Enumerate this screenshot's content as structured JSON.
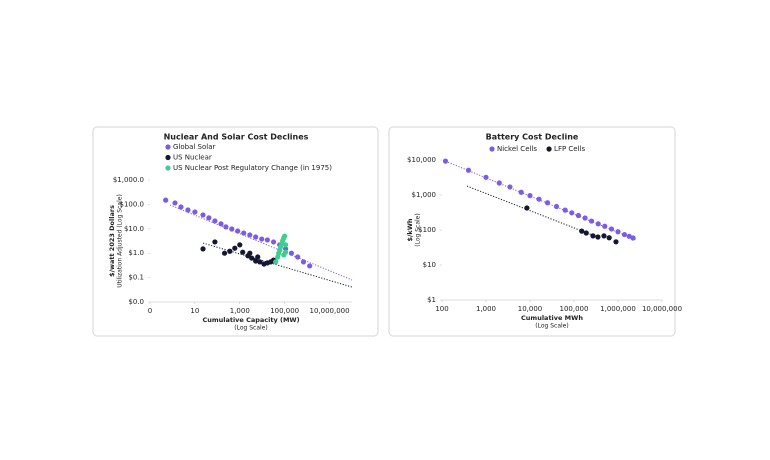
{
  "chart_data": [
    {
      "type": "scatter",
      "title": "Nuclear And Solar Cost Declines",
      "x_label": "Cumulative Capacity (MW)",
      "x_sublabel": "(Log Scale)",
      "y_label": "$/watt 2023 Dollars",
      "y_sublabel": "Utilization Adjusted (Log Scale)",
      "xscale": "log",
      "yscale": "log",
      "grid": false,
      "xlim": [
        0.1,
        100000000
      ],
      "xticks": [
        {
          "value": 0.1,
          "label": "0"
        },
        10,
        {
          "value": 1000,
          "label": "1,000"
        },
        {
          "value": 100000,
          "label": "100,000"
        },
        {
          "value": 10000000,
          "label": "10,000,000"
        }
      ],
      "ylim": [
        0.01,
        1000
      ],
      "yticks": [
        {
          "value": 0.01,
          "label": "$0.0"
        },
        {
          "value": 0.1,
          "label": "$0.1"
        },
        {
          "value": 1,
          "label": "$1.0"
        },
        {
          "value": 10,
          "label": "$10.0"
        },
        {
          "value": 100,
          "label": "$100.0"
        },
        {
          "value": 1000,
          "label": "$1,000.0"
        }
      ],
      "series": [
        {
          "name": "Global Solar",
          "color": "#7b5ce6",
          "x": [
            0.5,
            1.3,
            2.4,
            4.9,
            10,
            23,
            42,
            78,
            145,
            240,
            440,
            810,
            1500,
            2800,
            5100,
            9500,
            17000,
            32000,
            60000,
            110000,
            200000,
            380000,
            690000,
            1300000
          ],
          "values": [
            150,
            115,
            78,
            59,
            49,
            37,
            28,
            21,
            16,
            12,
            9.8,
            8.1,
            6.7,
            5.6,
            4.6,
            3.8,
            3.5,
            2.9,
            2.2,
            1.5,
            1.0,
            0.7,
            0.44,
            0.3
          ]
        },
        {
          "name": "US Nuclear",
          "color": "#141633",
          "x": [
            23,
            78,
            210,
            360,
            600,
            1000,
            1350,
            2300,
            3400,
            5100,
            7800,
            12000,
            17000,
            24000,
            32000,
            6300,
            2800
          ],
          "values": [
            1.5,
            2.9,
            1.0,
            1.2,
            1.6,
            2.2,
            1.1,
            0.78,
            0.63,
            0.48,
            0.44,
            0.36,
            0.4,
            0.44,
            0.52,
            0.7,
            1.0
          ]
        },
        {
          "name": "US Nuclear Post Regulatory Change (in 1975)",
          "color": "#3ccf8e",
          "x": [
            40000,
            49000,
            54000,
            60000,
            66000,
            74000,
            81000,
            91000,
            100000,
            110000,
            110000,
            91000
          ],
          "values": [
            0.44,
            0.7,
            1.0,
            1.35,
            1.8,
            2.4,
            3.2,
            4.2,
            5.0,
            2.2,
            1.1,
            0.85
          ]
        }
      ],
      "trendlines": [
        {
          "color": "#7b5ce6",
          "x": [
            0.78,
            100000000
          ],
          "y": [
            95,
            0.08
          ]
        },
        {
          "color": "#141633",
          "x": [
            23,
            100000000
          ],
          "y": [
            2.6,
            0.041
          ]
        }
      ]
    },
    {
      "type": "scatter",
      "title": "Battery Cost Decline",
      "x_label": "Cumulative MWh",
      "x_sublabel": "(Log Scale)",
      "y_label": "$/kWh",
      "y_sublabel": "(Log Scale)",
      "xscale": "log",
      "yscale": "log",
      "grid": false,
      "xlim": [
        100,
        10000000
      ],
      "xticks": [
        100,
        {
          "value": 1000,
          "label": "1,000"
        },
        {
          "value": 10000,
          "label": "10,000"
        },
        {
          "value": 100000,
          "label": "100,000"
        },
        {
          "value": 1000000,
          "label": "1,000,000"
        },
        {
          "value": 10000000,
          "label": "10,000,000"
        }
      ],
      "ylim": [
        1,
        10000
      ],
      "yticks": [
        {
          "value": 1,
          "label": "$1"
        },
        {
          "value": 10,
          "label": "$10"
        },
        {
          "value": 100,
          "label": "$100"
        },
        {
          "value": 1000,
          "label": "$1,000"
        },
        {
          "value": 10000,
          "label": "$10,000"
        }
      ],
      "series": [
        {
          "name": "Nickel Cells",
          "color": "#7b5ce6",
          "x": [
            120,
            400,
            1000,
            2000,
            3500,
            6300,
            10000,
            16000,
            25000,
            40000,
            63000,
            89000,
            126000,
            178000,
            250000,
            355000,
            500000,
            710000,
            1000000,
            1400000,
            1800000,
            2200000
          ],
          "values": [
            9300,
            5100,
            3200,
            2200,
            1700,
            1200,
            960,
            760,
            600,
            470,
            370,
            310,
            260,
            220,
            180,
            150,
            128,
            107,
            89,
            74,
            66,
            59
          ]
        },
        {
          "name": "LFP Cells",
          "color": "#141633",
          "x": [
            8500,
            150000,
            190000,
            270000,
            350000,
            480000,
            630000,
            900000
          ],
          "values": [
            425,
            93,
            82,
            68,
            63,
            68,
            60,
            46
          ]
        }
      ],
      "trendlines": [
        {
          "color": "#7b5ce6",
          "x": [
            120,
            2600000
          ],
          "y": [
            9300,
            52
          ]
        },
        {
          "color": "#141633",
          "x": [
            370,
            260000
          ],
          "y": [
            1800,
            72
          ]
        }
      ]
    }
  ]
}
